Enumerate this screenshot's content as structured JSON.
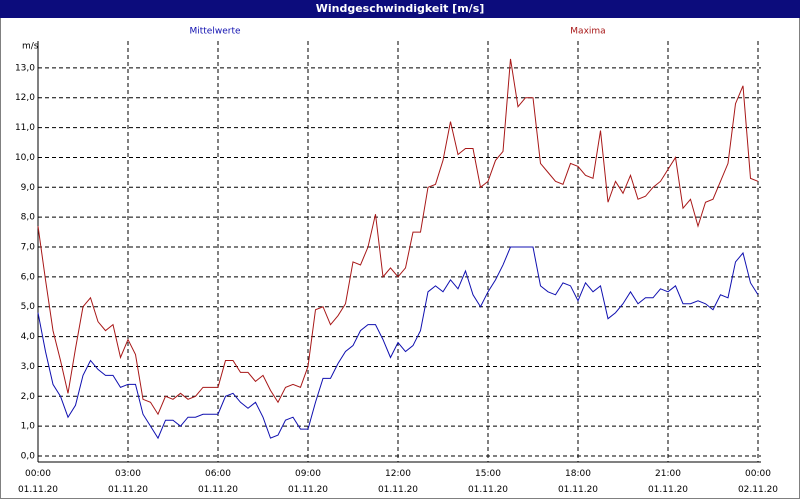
{
  "chart_data": {
    "type": "line",
    "title": "Windgeschwindigkeit [m/s]",
    "ylabel": "m/s",
    "x": [
      0,
      0.25,
      0.5,
      0.75,
      1,
      1.25,
      1.5,
      1.75,
      2,
      2.25,
      2.5,
      2.75,
      3,
      3.25,
      3.5,
      3.75,
      4,
      4.25,
      4.5,
      4.75,
      5,
      5.25,
      5.5,
      5.75,
      6,
      6.25,
      6.5,
      6.75,
      7,
      7.25,
      7.5,
      7.75,
      8,
      8.25,
      8.5,
      8.75,
      9,
      9.25,
      9.5,
      9.75,
      10,
      10.25,
      10.5,
      10.75,
      11,
      11.25,
      11.5,
      11.75,
      12,
      12.25,
      12.5,
      12.75,
      13,
      13.25,
      13.5,
      13.75,
      14,
      14.25,
      14.5,
      14.75,
      15,
      15.25,
      15.5,
      15.75,
      16,
      16.25,
      16.5,
      16.75,
      17,
      17.25,
      17.5,
      17.75,
      18,
      18.25,
      18.5,
      18.75,
      19,
      19.25,
      19.5,
      19.75,
      20,
      20.25,
      20.5,
      20.75,
      21,
      21.25,
      21.5,
      21.75,
      22,
      22.25,
      22.5,
      22.75,
      23,
      23.25,
      23.5,
      23.75,
      24
    ],
    "series": [
      {
        "name": "Mittelwerte",
        "color": "#1010b0",
        "values": [
          4.8,
          3.5,
          2.4,
          2.0,
          1.3,
          1.7,
          2.7,
          3.2,
          2.9,
          2.7,
          2.7,
          2.3,
          2.4,
          2.4,
          1.4,
          1.0,
          0.6,
          1.2,
          1.2,
          1.0,
          1.3,
          1.3,
          1.4,
          1.4,
          1.4,
          2.0,
          2.1,
          1.8,
          1.6,
          1.8,
          1.3,
          0.6,
          0.7,
          1.2,
          1.3,
          0.9,
          0.9,
          1.8,
          2.6,
          2.6,
          3.1,
          3.5,
          3.7,
          4.2,
          4.4,
          4.4,
          3.9,
          3.3,
          3.8,
          3.5,
          3.7,
          4.2,
          5.5,
          5.7,
          5.5,
          5.9,
          5.6,
          6.2,
          5.4,
          5.0,
          5.5,
          5.9,
          6.4,
          7.0,
          7.0,
          7.0,
          7.0,
          5.7,
          5.5,
          5.4,
          5.8,
          5.7,
          5.2,
          5.8,
          5.5,
          5.7,
          4.6,
          4.8,
          5.1,
          5.5,
          5.1,
          5.3,
          5.3,
          5.6,
          5.5,
          5.7,
          5.1,
          5.1,
          5.2,
          5.1,
          4.9,
          5.4,
          5.3,
          6.5,
          6.8,
          5.8,
          5.4
        ]
      },
      {
        "name": "Maxima",
        "color": "#a81818",
        "values": [
          7.7,
          5.9,
          4.2,
          3.2,
          2.1,
          3.6,
          5.0,
          5.3,
          4.5,
          4.2,
          4.4,
          3.3,
          3.9,
          3.4,
          1.9,
          1.8,
          1.4,
          2.0,
          1.9,
          2.1,
          1.9,
          2.0,
          2.3,
          2.3,
          2.3,
          3.2,
          3.2,
          2.8,
          2.8,
          2.5,
          2.7,
          2.2,
          1.8,
          2.3,
          2.4,
          2.3,
          3.0,
          4.9,
          5.0,
          4.4,
          4.7,
          5.1,
          6.5,
          6.4,
          7.0,
          8.1,
          6.0,
          6.3,
          6.0,
          6.3,
          7.5,
          7.5,
          9.0,
          9.1,
          9.9,
          11.2,
          10.1,
          10.3,
          10.3,
          9.0,
          9.2,
          9.9,
          10.2,
          13.3,
          11.7,
          12.0,
          12.0,
          9.8,
          9.5,
          9.2,
          9.1,
          9.8,
          9.7,
          9.4,
          9.3,
          10.9,
          8.5,
          9.2,
          8.8,
          9.4,
          8.6,
          8.7,
          9.0,
          9.2,
          9.6,
          10.0,
          8.3,
          8.6,
          7.7,
          8.5,
          8.6,
          9.2,
          9.8,
          11.8,
          12.4,
          9.3,
          9.2
        ]
      }
    ],
    "xlim": [
      0,
      24.1
    ],
    "ylim": [
      -0.2,
      13.9
    ],
    "xticks": [
      {
        "value": 0,
        "label": "00:00\n01.11.20"
      },
      {
        "value": 3,
        "label": "03:00\n01.11.20"
      },
      {
        "value": 6,
        "label": "06:00\n01.11.20"
      },
      {
        "value": 9,
        "label": "09:00\n01.11.20"
      },
      {
        "value": 12,
        "label": "12:00\n01.11.20"
      },
      {
        "value": 15,
        "label": "15:00\n01.11.20"
      },
      {
        "value": 18,
        "label": "18:00\n01.11.20"
      },
      {
        "value": 21,
        "label": "21:00\n01.11.20"
      },
      {
        "value": 24,
        "label": "00:00\n02.11.20"
      }
    ],
    "yticks": [
      {
        "value": 0,
        "label": "0,0"
      },
      {
        "value": 1,
        "label": "1,0"
      },
      {
        "value": 2,
        "label": "2,0"
      },
      {
        "value": 3,
        "label": "3,0"
      },
      {
        "value": 4,
        "label": "4,0"
      },
      {
        "value": 5,
        "label": "5,0"
      },
      {
        "value": 6,
        "label": "6,0"
      },
      {
        "value": 7,
        "label": "7,0"
      },
      {
        "value": 8,
        "label": "8,0"
      },
      {
        "value": 9,
        "label": "9,0"
      },
      {
        "value": 10,
        "label": "10,0"
      },
      {
        "value": 11,
        "label": "11,0"
      },
      {
        "value": 12,
        "label": "12,0"
      },
      {
        "value": 13,
        "label": "13,0"
      }
    ],
    "grid": true
  }
}
